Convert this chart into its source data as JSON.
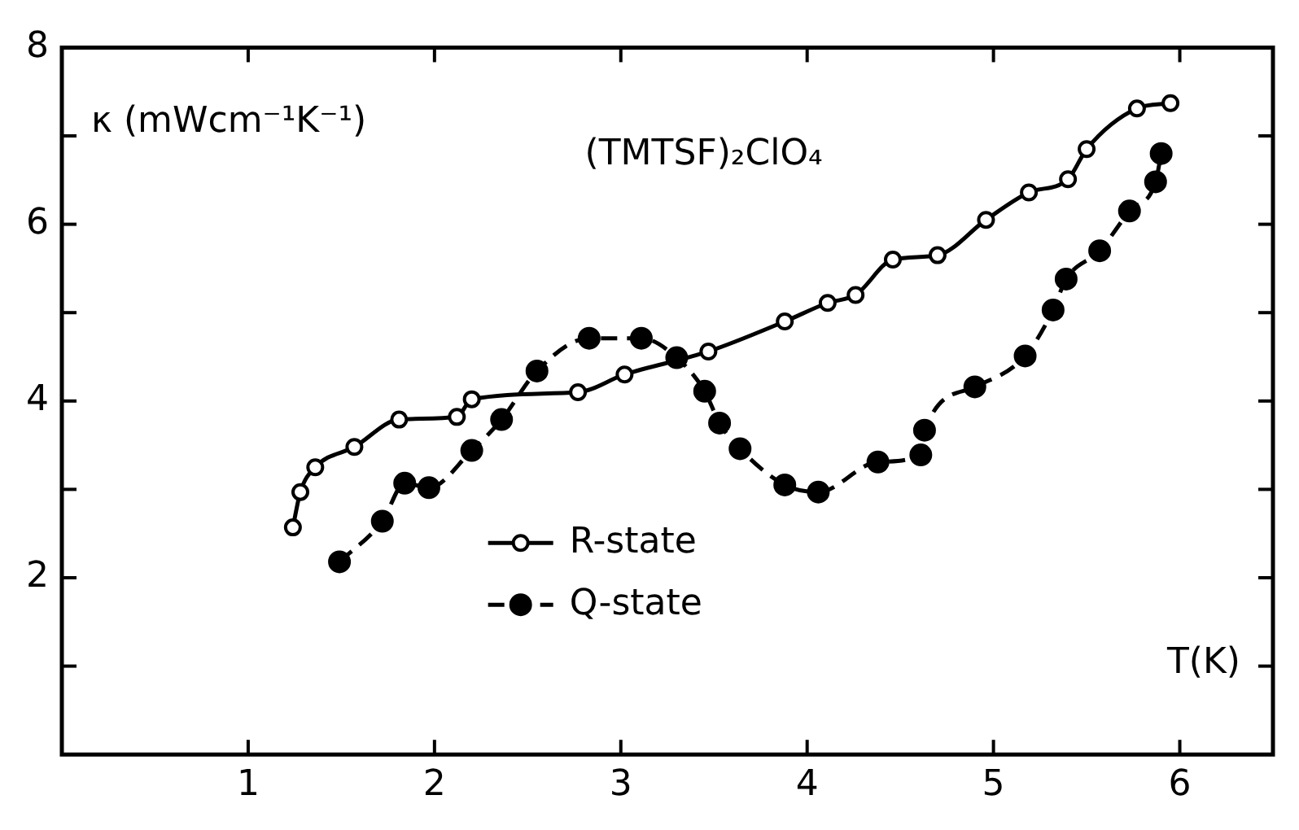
{
  "chart_data": {
    "type": "line",
    "title": "(TMTSF)₂ClO₄",
    "xlabel": "T(K)",
    "ylabel": "κ (mWcm⁻¹K⁻¹)",
    "xlim": [
      0,
      6.5
    ],
    "ylim": [
      0,
      8
    ],
    "xticks": [
      1,
      2,
      3,
      4,
      5,
      6
    ],
    "yticks": [
      {
        "value": 1,
        "label": null
      },
      2,
      {
        "value": 3,
        "label": null
      },
      4,
      {
        "value": 5,
        "label": null
      },
      6,
      {
        "value": 7,
        "label": null
      },
      8
    ],
    "grid": false,
    "legend": "bottom",
    "marker": "circle",
    "series": [
      {
        "name": "R-state",
        "color": "#000000",
        "line_style": "solid",
        "x": [
          1.24,
          1.28,
          1.36,
          1.57,
          1.81,
          2.12,
          2.2,
          2.77,
          3.02,
          3.47,
          3.88,
          4.11,
          4.26,
          4.46,
          4.7,
          4.96,
          5.19,
          5.4,
          5.5,
          5.77,
          5.95
        ],
        "values": [
          2.57,
          2.97,
          3.25,
          3.48,
          3.79,
          3.82,
          4.02,
          4.1,
          4.3,
          4.56,
          4.9,
          5.11,
          5.2,
          5.6,
          5.65,
          6.05,
          6.36,
          6.51,
          6.85,
          7.31,
          7.37
        ]
      },
      {
        "name": "Q-state",
        "color": "#000000",
        "line_style": "dashed",
        "x": [
          1.49,
          1.72,
          1.84,
          1.97,
          2.2,
          2.36,
          2.55,
          2.83,
          3.11,
          3.3,
          3.45,
          3.53,
          3.64,
          3.88,
          4.06,
          4.38,
          4.61,
          4.63,
          4.9,
          5.17,
          5.32,
          5.39,
          5.57,
          5.73,
          5.87,
          5.9
        ],
        "values": [
          2.18,
          2.64,
          3.07,
          3.02,
          3.44,
          3.79,
          4.34,
          4.71,
          4.71,
          4.49,
          4.11,
          3.75,
          3.46,
          3.05,
          2.97,
          3.31,
          3.39,
          3.67,
          4.16,
          4.51,
          5.03,
          5.38,
          5.7,
          6.15,
          6.48,
          6.8
        ]
      }
    ]
  }
}
